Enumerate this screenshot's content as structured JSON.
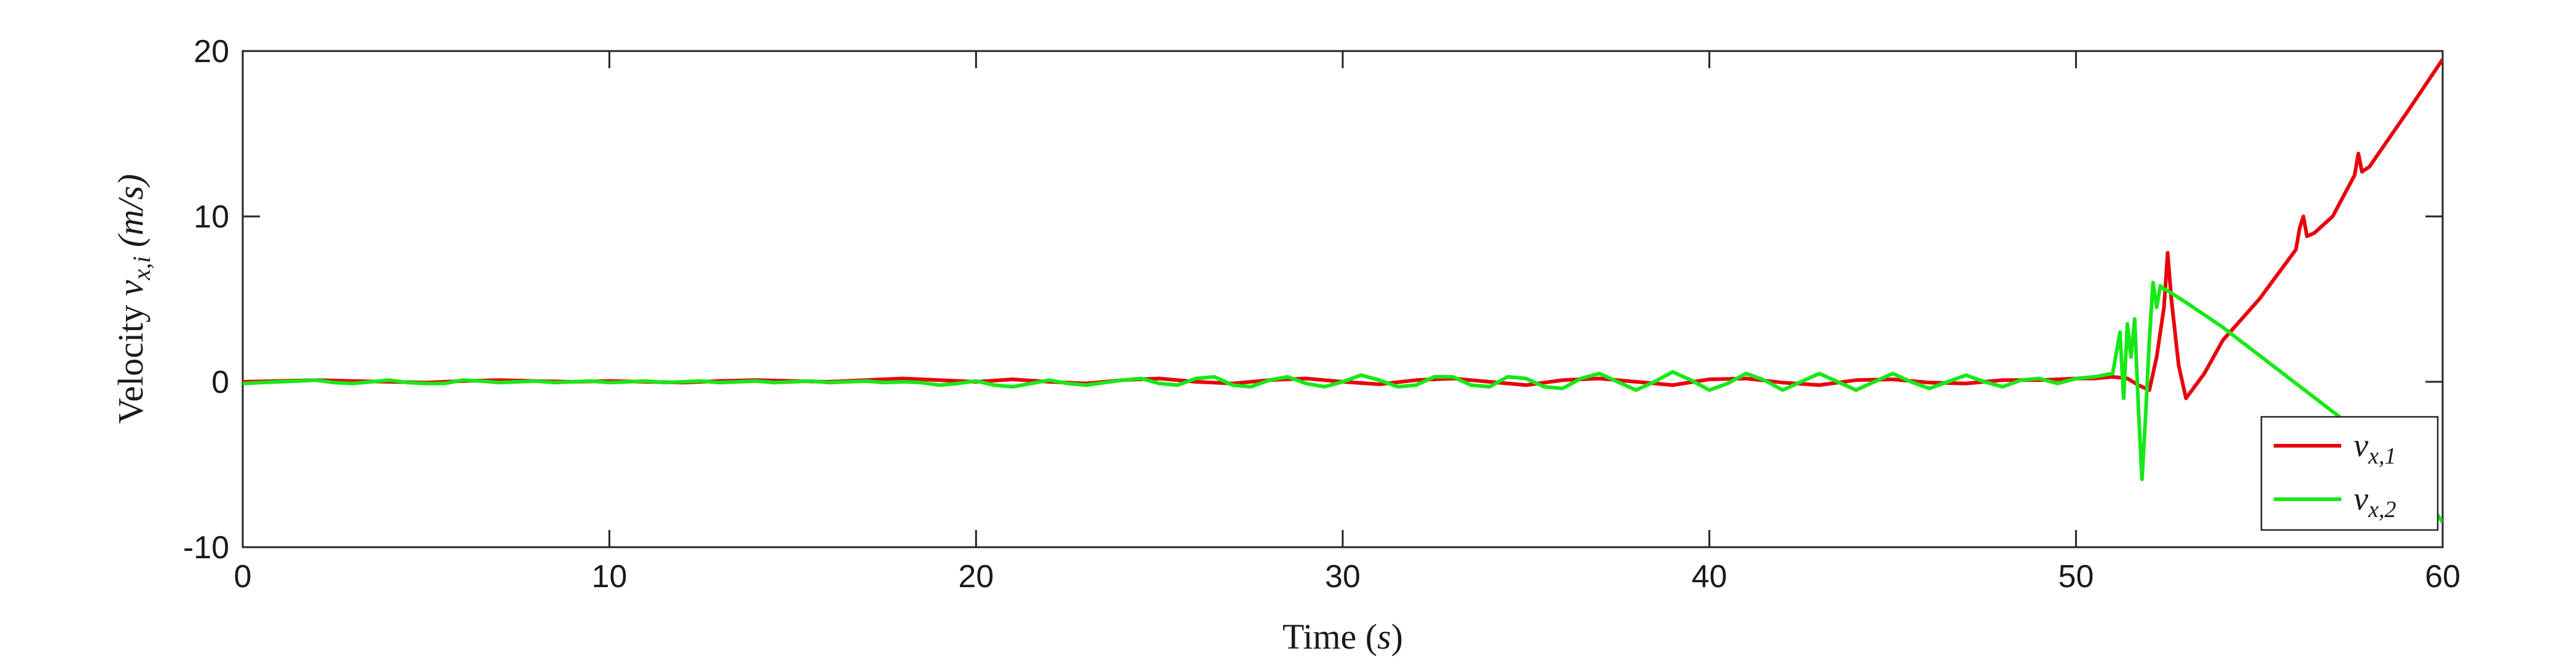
{
  "chart_data": {
    "type": "line",
    "xlabel_parts": {
      "prefix": "Time (",
      "math": "s",
      "suffix": ")"
    },
    "ylabel_parts": {
      "prefix": "Velocity ",
      "math_main": "v",
      "math_sub": "x,i",
      "unit": " (m/s)"
    },
    "xlim": [
      0,
      60
    ],
    "ylim": [
      -10,
      20
    ],
    "xticks": [
      0,
      10,
      20,
      30,
      40,
      50,
      60
    ],
    "yticks": [
      -10,
      0,
      10,
      20
    ],
    "grid": false,
    "legend_position": "bottom-right",
    "series": [
      {
        "name_main": "v",
        "name_sub": "x,1",
        "color": "#e8000b",
        "x": [
          0,
          1,
          2,
          3,
          4,
          5,
          6,
          7,
          8,
          9,
          10,
          11,
          12,
          13,
          14,
          15,
          16,
          17,
          18,
          19,
          20,
          21,
          22,
          23,
          24,
          25,
          26,
          27,
          28,
          29,
          30,
          31,
          32,
          33,
          34,
          35,
          36,
          37,
          38,
          39,
          40,
          41,
          42,
          43,
          44,
          45,
          46,
          47,
          48,
          49,
          50,
          50.5,
          51,
          51.4,
          51.7,
          52.0,
          52.2,
          52.4,
          52.5,
          52.6,
          52.8,
          53.0,
          53.5,
          54,
          55,
          56,
          56.1,
          56.2,
          56.3,
          56.5,
          57,
          57.6,
          57.7,
          57.8,
          58,
          59,
          60
        ],
        "y": [
          0,
          0.05,
          0.1,
          0.05,
          0,
          -0.05,
          0.05,
          0.1,
          0.05,
          0,
          0.05,
          0,
          -0.05,
          0.05,
          0.1,
          0.05,
          0,
          0.1,
          0.2,
          0.1,
          0,
          0.15,
          0,
          -0.1,
          0.1,
          0.2,
          0,
          -0.1,
          0.1,
          0.2,
          0,
          -0.15,
          0.1,
          0.2,
          0,
          -0.2,
          0.1,
          0.2,
          0,
          -0.2,
          0.15,
          0.2,
          -0.05,
          -0.2,
          0.1,
          0.15,
          -0.05,
          -0.1,
          0.1,
          0.1,
          0.2,
          0.2,
          0.3,
          0.2,
          -0.2,
          -0.5,
          1.5,
          4.5,
          7.8,
          5.0,
          1.0,
          -1.0,
          0.5,
          2.5,
          5.0,
          8.0,
          9.3,
          10.0,
          8.8,
          9.0,
          10.0,
          12.5,
          13.8,
          12.7,
          13.0,
          16.2,
          19.5
        ]
      },
      {
        "name_main": "v",
        "name_sub": "x,2",
        "color": "#17e817",
        "x": [
          0,
          0.5,
          1,
          1.5,
          2,
          2.5,
          3,
          3.5,
          4,
          4.5,
          5,
          5.5,
          6,
          6.5,
          7,
          7.5,
          8,
          8.5,
          9,
          9.5,
          10,
          10.5,
          11,
          11.5,
          12,
          12.5,
          13,
          13.5,
          14,
          14.5,
          15,
          15.5,
          16,
          16.5,
          17,
          17.5,
          18,
          18.5,
          19,
          19.5,
          20,
          20.5,
          21,
          21.5,
          22,
          22.5,
          23,
          23.5,
          24,
          24.5,
          25,
          25.5,
          26,
          26.5,
          27,
          27.5,
          28,
          28.5,
          29,
          29.5,
          30,
          30.5,
          31,
          31.5,
          32,
          32.5,
          33,
          33.5,
          34,
          34.5,
          35,
          35.5,
          36,
          36.5,
          37,
          37.5,
          38,
          38.5,
          39,
          39.5,
          40,
          40.5,
          41,
          41.5,
          42,
          42.5,
          43,
          43.5,
          44,
          44.5,
          45,
          45.5,
          46,
          46.5,
          47,
          47.5,
          48,
          48.5,
          49,
          49.5,
          50,
          50.5,
          51,
          51.2,
          51.3,
          51.4,
          51.5,
          51.6,
          51.7,
          51.8,
          51.9,
          52.0,
          52.1,
          52.2,
          52.3,
          52.4,
          52.5,
          53,
          54,
          55,
          56,
          57,
          58,
          59,
          60
        ],
        "y": [
          -0.1,
          -0.05,
          0,
          0.05,
          0.1,
          -0.05,
          -0.1,
          0,
          0.1,
          -0.05,
          -0.1,
          -0.1,
          0.1,
          0.05,
          -0.05,
          0,
          0.05,
          -0.05,
          0,
          0.05,
          -0.05,
          0,
          0.05,
          -0.05,
          0,
          0.05,
          -0.05,
          0,
          0.05,
          -0.05,
          0,
          0.05,
          -0.05,
          0,
          0.05,
          -0.05,
          0,
          -0.05,
          -0.2,
          -0.1,
          0.05,
          -0.2,
          -0.3,
          -0.1,
          0.1,
          -0.1,
          -0.2,
          -0.05,
          0.1,
          0.2,
          -0.1,
          -0.2,
          0.2,
          0.3,
          -0.2,
          -0.3,
          0.1,
          0.3,
          -0.1,
          -0.3,
          0,
          0.4,
          0.1,
          -0.3,
          -0.2,
          0.3,
          0.3,
          -0.2,
          -0.3,
          0.3,
          0.2,
          -0.3,
          -0.4,
          0.2,
          0.5,
          0,
          -0.5,
          0,
          0.6,
          0.1,
          -0.5,
          -0.1,
          0.5,
          0.1,
          -0.5,
          0,
          0.5,
          0,
          -0.5,
          0,
          0.5,
          0,
          -0.4,
          0,
          0.4,
          0,
          -0.3,
          0.1,
          0.2,
          -0.1,
          0.2,
          0.3,
          0.5,
          3.0,
          -1.0,
          3.5,
          1.5,
          3.8,
          -1.5,
          -5.9,
          -2.0,
          2.5,
          6.0,
          4.5,
          5.8,
          5.6,
          5.5,
          4.8,
          3.3,
          1.6,
          -0.1,
          -1.8,
          -3.5,
          -5.3,
          -8.5
        ]
      }
    ]
  }
}
